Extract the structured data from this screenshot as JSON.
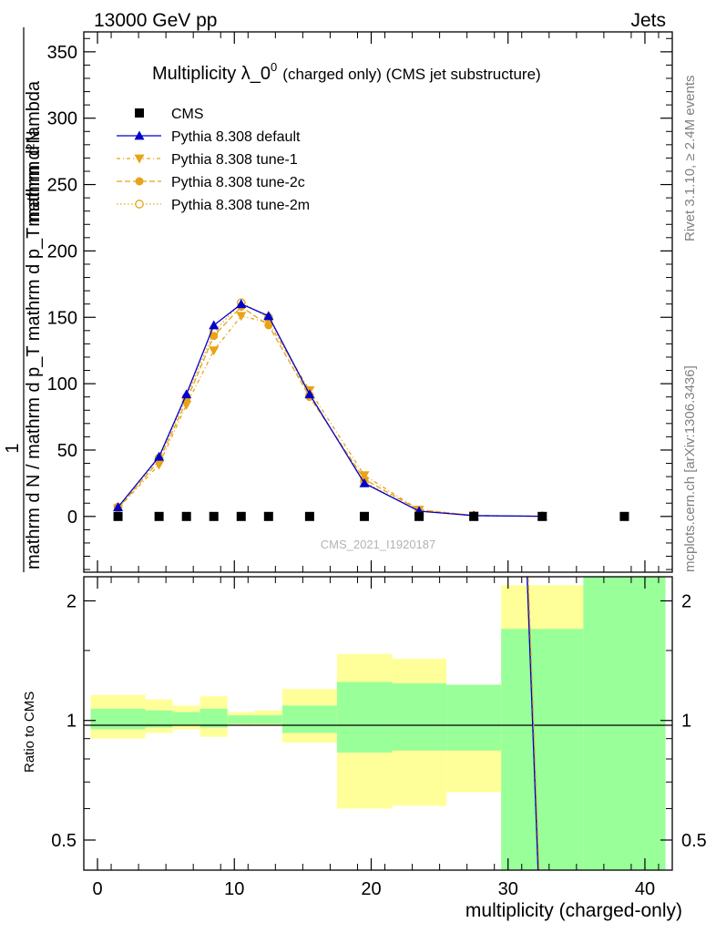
{
  "header": {
    "left": "13000 GeV pp",
    "right": "Jets"
  },
  "side_labels": {
    "rivet": "Rivet 3.1.10, ≥ 2.4M events",
    "mcplots": "mcplots.cern.ch [arXiv:1306.3436]"
  },
  "chart_data": [
    {
      "type": "scatter",
      "title": "Multiplicity λ_0",
      "title_sup": "0",
      "title_suffix": "(charged only) (CMS jet substructure)",
      "watermark": "CMS_2021_I1920187",
      "xlabel": "multiplicity (charged-only)",
      "ylabel_top": "1",
      "ylabel": "mathrm d N / mathrm d p_T mathrm d lambda",
      "ylabel_numerator": "mathrm d²N",
      "ylabel_denominator": "mathrm d N / mathrm d p_T mathrm d p_T mathrm d lambda",
      "xlim": [
        -1,
        42
      ],
      "ylim": [
        -42,
        365
      ],
      "y_ticks": [
        0,
        50,
        100,
        150,
        200,
        250,
        300,
        350
      ],
      "x_ticks": [
        0,
        10,
        20,
        30,
        40
      ],
      "legend_position": "top-left",
      "series": [
        {
          "name": "CMS",
          "color": "#000000",
          "marker": "square",
          "x": [
            1.5,
            4.5,
            6.5,
            8.5,
            10.5,
            12.5,
            15.5,
            19.5,
            23.5,
            27.5,
            32.5,
            38.5
          ],
          "y": [
            0,
            0,
            0,
            0,
            0,
            0,
            0,
            0,
            0,
            0,
            0,
            0
          ]
        },
        {
          "name": "Pythia 8.308 default",
          "color": "#0000cc",
          "marker": "triangle-up",
          "x": [
            1.5,
            4.5,
            6.5,
            8.5,
            10.5,
            12.5,
            15.5,
            19.5,
            23.5,
            27.5,
            32.5
          ],
          "y": [
            7,
            45,
            92,
            144,
            160,
            151,
            92,
            25,
            4,
            0.6,
            0.1
          ]
        },
        {
          "name": "Pythia 8.308 tune-1",
          "color": "#e8a317",
          "marker": "triangle-down",
          "x": [
            1.5,
            4.5,
            6.5,
            8.5,
            10.5,
            12.5,
            15.5,
            19.5,
            23.5,
            27.5,
            32.5
          ],
          "y": [
            6,
            39,
            84,
            125,
            151,
            146,
            95,
            31,
            5,
            0.7,
            0.1
          ]
        },
        {
          "name": "Pythia 8.308 tune-2c",
          "color": "#e8a317",
          "marker": "circle-filled",
          "x": [
            1.5,
            4.5,
            6.5,
            8.5,
            10.5,
            12.5,
            15.5,
            19.5,
            23.5,
            27.5,
            32.5
          ],
          "y": [
            6,
            42,
            87,
            136,
            158,
            144,
            90,
            28,
            5,
            0.7,
            0.1
          ]
        },
        {
          "name": "Pythia 8.308 tune-2m",
          "color": "#e8a317",
          "marker": "circle-open",
          "x": [
            1.5,
            4.5,
            6.5,
            8.5,
            10.5,
            12.5,
            15.5,
            19.5,
            23.5,
            27.5,
            32.5
          ],
          "y": [
            7,
            44,
            90,
            139,
            161,
            150,
            91,
            26,
            4,
            0.6,
            0.1
          ]
        }
      ]
    },
    {
      "type": "line",
      "ylabel": "Ratio to CMS",
      "xlabel": "multiplicity (charged-only)",
      "scale": "log",
      "xlim": [
        -1,
        42
      ],
      "ylim": [
        0.42,
        2.3
      ],
      "y_ticks": [
        0.5,
        1,
        2
      ],
      "y_tick_labels": [
        "0.5",
        "1",
        "2"
      ],
      "x_ticks": [
        0,
        10,
        20,
        30,
        40
      ],
      "bands": {
        "colors": {
          "inner": "#99ff99",
          "outer": "#ffff99"
        },
        "bin_edges": [
          -0.5,
          3.5,
          5.5,
          7.5,
          9.5,
          11.5,
          13.5,
          17.5,
          21.5,
          25.5,
          29.5,
          35.5,
          41.5
        ],
        "inner_low": [
          0.95,
          0.96,
          0.97,
          0.96,
          0.98,
          0.98,
          0.93,
          0.83,
          0.84,
          0.84,
          0.3,
          0.3
        ],
        "inner_high": [
          1.07,
          1.06,
          1.05,
          1.07,
          1.03,
          1.03,
          1.09,
          1.25,
          1.24,
          1.23,
          1.7,
          2.3
        ],
        "outer_low": [
          0.9,
          0.93,
          0.95,
          0.91,
          0.97,
          0.97,
          0.88,
          0.6,
          0.61,
          0.66,
          0.3,
          0.3
        ],
        "outer_high": [
          1.16,
          1.13,
          1.09,
          1.15,
          1.05,
          1.06,
          1.2,
          1.47,
          1.43,
          1.23,
          2.19,
          2.3
        ]
      },
      "ratio_line": {
        "x_top": 31.4,
        "x_bottom": 32.2,
        "colors": [
          "#0000cc",
          "#e8a317"
        ]
      }
    }
  ]
}
